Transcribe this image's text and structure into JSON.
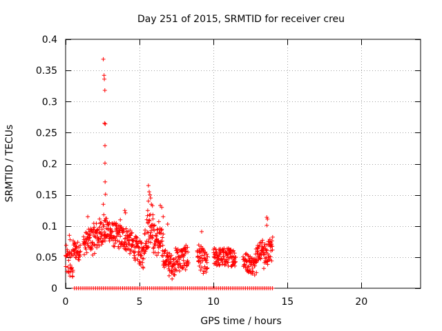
{
  "chart_data": {
    "type": "scatter",
    "title": "Day 251 of 2015, SRMTID for receiver creu",
    "xlabel": "GPS time / hours",
    "ylabel": "SRMTID / TECUs",
    "xlim": [
      0,
      24
    ],
    "ylim": [
      0,
      0.4
    ],
    "x_ticks": [
      0,
      5,
      10,
      15,
      20
    ],
    "x_tick_labels": [
      "0",
      "5",
      "10",
      "15",
      "20"
    ],
    "y_ticks": [
      0,
      0.05,
      0.1,
      0.15,
      0.2,
      0.25,
      0.3,
      0.35,
      0.4
    ],
    "y_tick_labels": [
      "0",
      "0.05",
      "0.1",
      "0.15",
      "0.2",
      "0.25",
      "0.3",
      "0.35",
      "0.4"
    ],
    "grid": true,
    "marker": "+",
    "color": "#ff0000",
    "series": [
      {
        "name": "SRMTID",
        "segments": [
          {
            "x": [
              0.0,
              0.5
            ],
            "y": [
              0.045,
              0.035
            ],
            "spread": 0.025
          },
          {
            "x": [
              0.5,
              1.0
            ],
            "y": [
              0.062,
              0.06
            ],
            "spread": 0.015
          },
          {
            "x": [
              1.2,
              1.7
            ],
            "y": [
              0.07,
              0.08
            ],
            "spread": 0.018
          },
          {
            "x": [
              1.7,
              2.4
            ],
            "y": [
              0.075,
              0.09
            ],
            "spread": 0.025
          },
          {
            "x": [
              2.4,
              3.0
            ],
            "y": [
              0.09,
              0.095
            ],
            "spread": 0.02
          },
          {
            "x": [
              3.0,
              4.3
            ],
            "y": [
              0.088,
              0.078
            ],
            "spread": 0.02
          },
          {
            "x": [
              4.3,
              5.3
            ],
            "y": [
              0.075,
              0.05
            ],
            "spread": 0.02
          },
          {
            "x": [
              5.3,
              5.9
            ],
            "y": [
              0.08,
              0.11
            ],
            "spread": 0.03
          },
          {
            "x": [
              5.9,
              6.6
            ],
            "y": [
              0.08,
              0.07
            ],
            "spread": 0.025
          },
          {
            "x": [
              6.6,
              7.4
            ],
            "y": [
              0.05,
              0.035
            ],
            "spread": 0.015
          },
          {
            "x": [
              7.4,
              8.3
            ],
            "y": [
              0.045,
              0.05
            ],
            "spread": 0.02
          },
          {
            "x": [
              8.9,
              9.6
            ],
            "y": [
              0.055,
              0.035
            ],
            "spread": 0.02
          },
          {
            "x": [
              10.0,
              11.5
            ],
            "y": [
              0.05,
              0.05
            ],
            "spread": 0.015
          },
          {
            "x": [
              12.0,
              12.8
            ],
            "y": [
              0.045,
              0.035
            ],
            "spread": 0.015
          },
          {
            "x": [
              12.8,
              13.4
            ],
            "y": [
              0.055,
              0.065
            ],
            "spread": 0.015
          },
          {
            "x": [
              13.4,
              14.0
            ],
            "y": [
              0.05,
              0.065
            ],
            "spread": 0.02
          }
        ],
        "peaks": [
          {
            "x": 2.55,
            "y": 0.368
          },
          {
            "x": 2.6,
            "y": 0.342
          },
          {
            "x": 2.62,
            "y": 0.336
          },
          {
            "x": 2.65,
            "y": 0.318
          },
          {
            "x": 2.63,
            "y": 0.265
          },
          {
            "x": 2.68,
            "y": 0.264
          },
          {
            "x": 2.66,
            "y": 0.229
          },
          {
            "x": 2.66,
            "y": 0.201
          },
          {
            "x": 2.67,
            "y": 0.171
          },
          {
            "x": 2.7,
            "y": 0.151
          },
          {
            "x": 2.55,
            "y": 0.135
          },
          {
            "x": 2.58,
            "y": 0.118
          },
          {
            "x": 5.6,
            "y": 0.165
          },
          {
            "x": 5.65,
            "y": 0.155
          },
          {
            "x": 5.7,
            "y": 0.15
          },
          {
            "x": 5.75,
            "y": 0.145
          },
          {
            "x": 5.6,
            "y": 0.14
          },
          {
            "x": 5.8,
            "y": 0.135
          },
          {
            "x": 5.55,
            "y": 0.125
          },
          {
            "x": 5.9,
            "y": 0.118
          },
          {
            "x": 6.4,
            "y": 0.133
          },
          {
            "x": 6.5,
            "y": 0.13
          },
          {
            "x": 6.6,
            "y": 0.115
          },
          {
            "x": 1.5,
            "y": 0.115
          },
          {
            "x": 4.0,
            "y": 0.125
          },
          {
            "x": 4.05,
            "y": 0.121
          },
          {
            "x": 6.3,
            "y": 0.107
          },
          {
            "x": 6.9,
            "y": 0.103
          },
          {
            "x": 9.2,
            "y": 0.091
          },
          {
            "x": 13.6,
            "y": 0.114
          },
          {
            "x": 13.65,
            "y": 0.111
          },
          {
            "x": 13.6,
            "y": 0.101
          },
          {
            "x": 0.25,
            "y": 0.085
          },
          {
            "x": 0.3,
            "y": 0.078
          },
          {
            "x": 3.7,
            "y": 0.11
          },
          {
            "x": 7.0,
            "y": 0.02
          },
          {
            "x": 7.2,
            "y": 0.015
          },
          {
            "x": 12.9,
            "y": 0.025
          }
        ],
        "zero_line_ranges": [
          [
            0.6,
            7.1
          ],
          [
            7.2,
            9.6
          ],
          [
            9.7,
            14.0
          ]
        ]
      }
    ]
  }
}
